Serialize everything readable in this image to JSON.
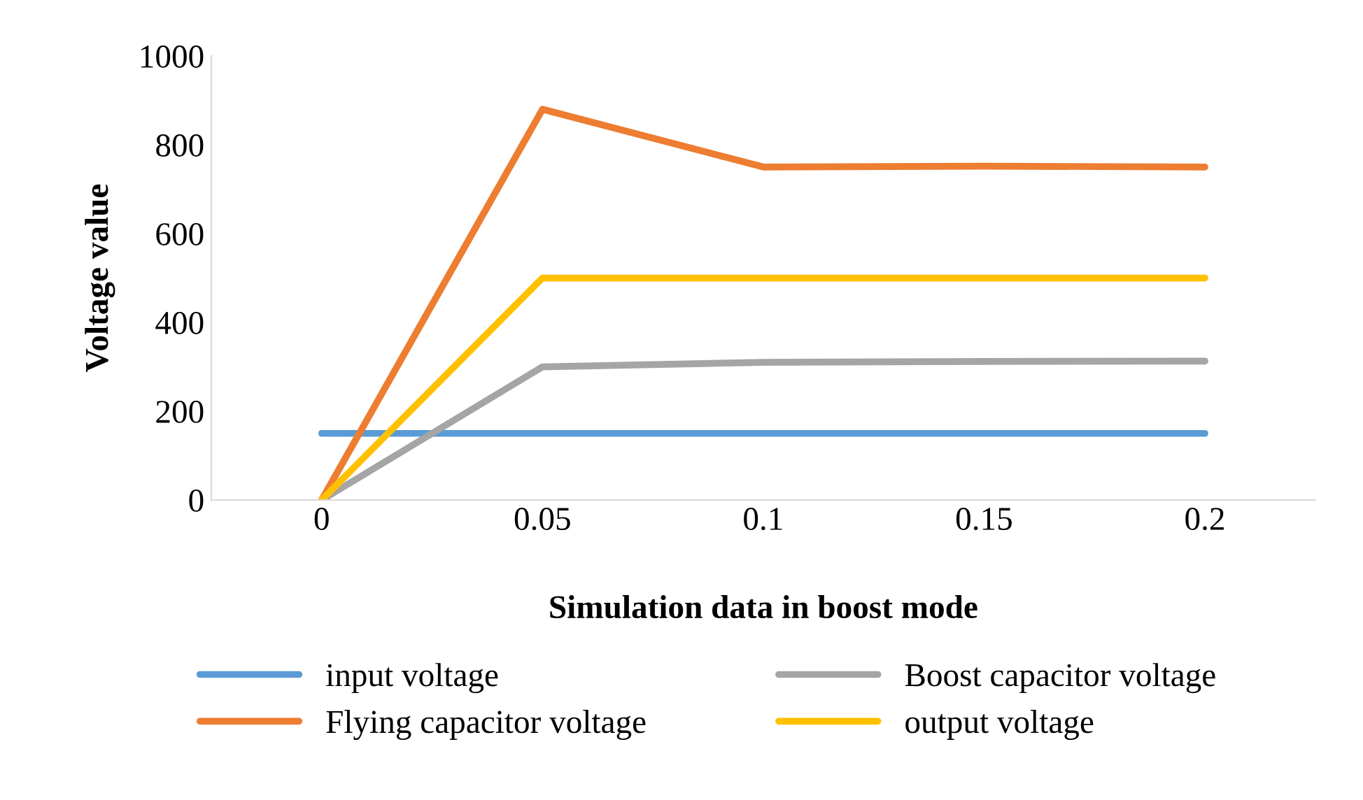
{
  "chart_data": {
    "type": "line",
    "xlabel": "Simulation data in boost mode",
    "ylabel": "Voltage value",
    "categories": [
      "0",
      "0.05",
      "0.1",
      "0.15",
      "0.2"
    ],
    "series": [
      {
        "name": "input voltage",
        "color": "#5b9bd5",
        "values": [
          150,
          150,
          150,
          150,
          150
        ]
      },
      {
        "name": "Flying capacitor voltage",
        "color": "#ed7d31",
        "values": [
          0,
          880,
          750,
          752,
          750
        ]
      },
      {
        "name": "Boost capacitor voltage",
        "color": "#a5a5a5",
        "values": [
          0,
          300,
          310,
          312,
          313
        ]
      },
      {
        "name": "output voltage",
        "color": "#ffc000",
        "values": [
          0,
          500,
          500,
          500,
          500
        ]
      }
    ],
    "ylim": [
      0,
      1000
    ],
    "yticks": [
      0,
      200,
      400,
      600,
      800,
      1000
    ],
    "grid": false,
    "legend": "bottom",
    "marker": "none",
    "line_style": "solid"
  }
}
